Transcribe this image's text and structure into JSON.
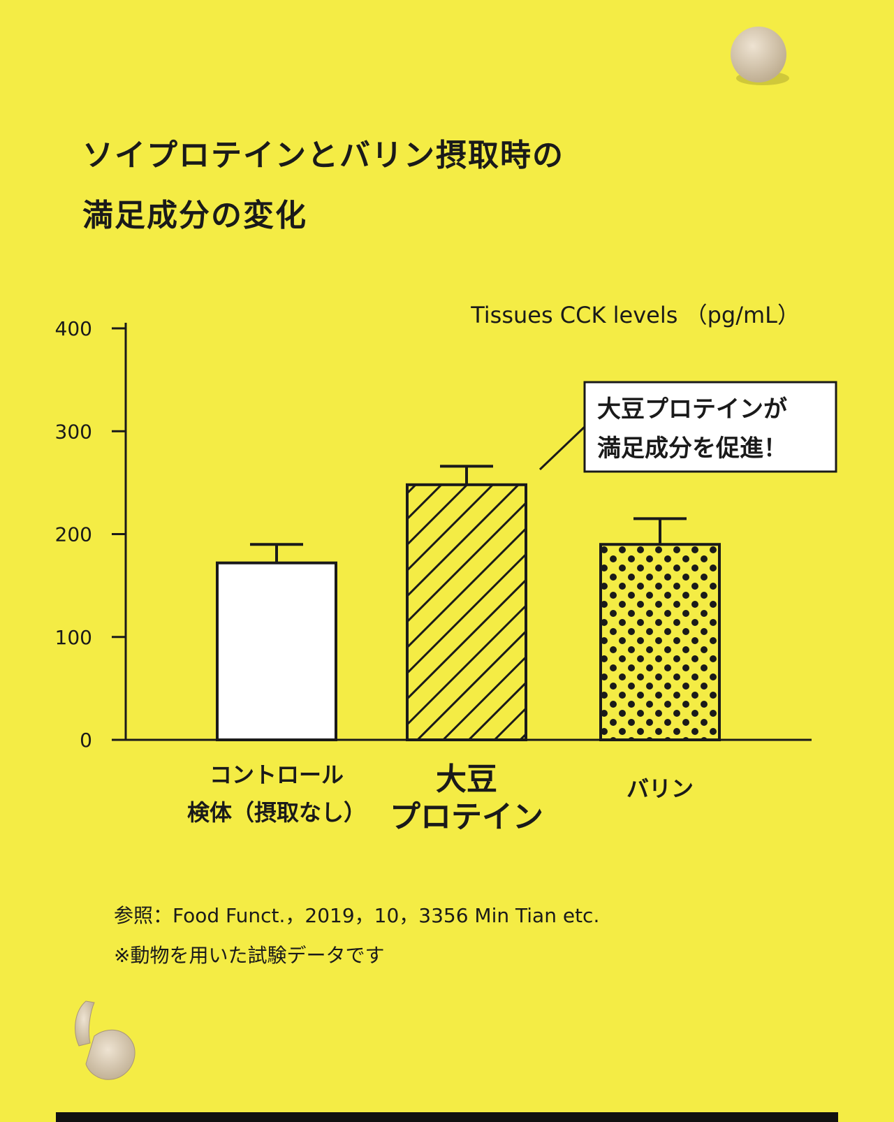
{
  "title": {
    "line1": "ソイプロテインとバリン摂取時の",
    "line2": "満足成分の変化"
  },
  "chart_data": {
    "type": "bar",
    "ylabel": "Tissues CCK levels （pg/mL）",
    "ylim": [
      0,
      400
    ],
    "yticks": [
      "0",
      "100",
      "200",
      "300",
      "400"
    ],
    "categories": [
      {
        "lines": [
          "コントロール",
          "検体（摂取なし）"
        ],
        "value": 172,
        "error": 18,
        "pattern": "plain"
      },
      {
        "lines": [
          "大豆",
          "プロテイン"
        ],
        "value": 248,
        "error": 18,
        "pattern": "hatch"
      },
      {
        "lines": [
          "バリン"
        ],
        "value": 190,
        "error": 25,
        "pattern": "dots"
      }
    ],
    "callout": {
      "lines": [
        "大豆プロテインが",
        "満足成分を促進！"
      ]
    }
  },
  "references": {
    "source": "参照：Food Funct.，2019，10，3356 Min Tian etc.",
    "note": "※動物を用いた試験データです"
  },
  "colors": {
    "background": "#f4ec45",
    "ink": "#1a1a1a",
    "bar_fill": "#ffffff",
    "pill": "#d9cbb3"
  },
  "icons": [
    "pill-icon",
    "split-pill-icon"
  ]
}
